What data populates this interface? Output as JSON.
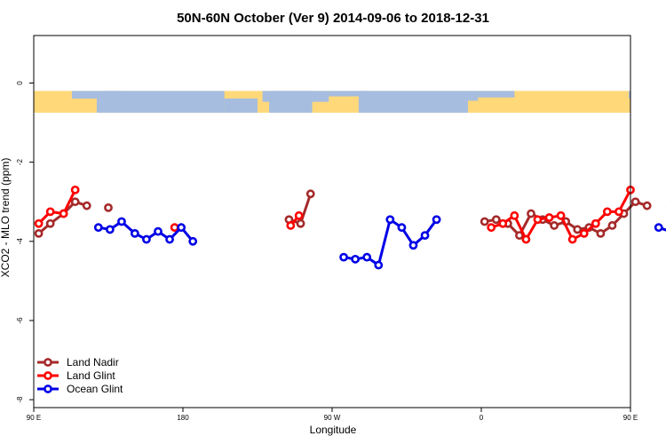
{
  "chart_data": {
    "type": "line",
    "title": "50N-60N October (Ver 9)   2014-09-06 to 2018-12-31",
    "xlabel": "Longitude",
    "ylabel": "XCO2 - MLO trend (ppm)",
    "xlim": [
      90,
      450
    ],
    "ylim": [
      -8.2,
      1.2
    ],
    "x_ticks": [
      {
        "value": 90,
        "label": "90 E"
      },
      {
        "value": 180,
        "label": "180"
      },
      {
        "value": 270,
        "label": "90 W"
      },
      {
        "value": 360,
        "label": "0"
      },
      {
        "value": 450,
        "label": "90 E"
      },
      {
        "value": 540,
        "label": "180"
      }
    ],
    "y_ticks": [
      {
        "value": 0,
        "label": "0"
      },
      {
        "value": -2,
        "label": "-2"
      },
      {
        "value": -4,
        "label": "-4"
      },
      {
        "value": -6,
        "label": "-6"
      },
      {
        "value": -8,
        "label": "-8"
      }
    ],
    "map_strip": {
      "y_top": -0.2,
      "y_bottom": -0.75,
      "land_color": "#ffd87a",
      "ocean_color": "#a6bddf"
    },
    "legend": {
      "placement": "bottom-left"
    },
    "series": [
      {
        "name": "Land Nadir",
        "color": "#a52a2a",
        "segments": [
          [
            [
              93,
              -3.8
            ],
            [
              100,
              -3.55
            ],
            [
              108,
              -3.3
            ],
            [
              115,
              -3.0
            ],
            [
              122,
              -3.1
            ]
          ],
          [
            [
              135,
              -3.15
            ]
          ],
          [
            [
              244,
              -3.45
            ],
            [
              251,
              -3.55
            ],
            [
              257,
              -2.8
            ]
          ],
          [
            [
              362,
              -3.5
            ],
            [
              369,
              -3.45
            ],
            [
              376,
              -3.55
            ],
            [
              383,
              -3.85
            ],
            [
              390,
              -3.3
            ],
            [
              397,
              -3.45
            ],
            [
              404,
              -3.6
            ],
            [
              411,
              -3.5
            ],
            [
              418,
              -3.7
            ],
            [
              425,
              -3.65
            ],
            [
              432,
              -3.8
            ],
            [
              439,
              -3.6
            ],
            [
              446,
              -3.3
            ],
            [
              453,
              -3.0
            ],
            [
              460,
              -3.1
            ]
          ],
          [
            [
              474,
              -3.15
            ]
          ]
        ]
      },
      {
        "name": "Land Glint",
        "color": "#ff0000",
        "segments": [
          [
            [
              93,
              -3.55
            ],
            [
              100,
              -3.25
            ],
            [
              108,
              -3.3
            ],
            [
              115,
              -2.7
            ]
          ],
          [
            [
              175,
              -3.65
            ]
          ],
          [
            [
              245,
              -3.6
            ],
            [
              250,
              -3.35
            ]
          ],
          [
            [
              366,
              -3.65
            ],
            [
              373,
              -3.55
            ],
            [
              380,
              -3.35
            ],
            [
              387,
              -3.95
            ],
            [
              394,
              -3.45
            ],
            [
              401,
              -3.4
            ],
            [
              408,
              -3.35
            ],
            [
              415,
              -3.95
            ],
            [
              422,
              -3.8
            ],
            [
              429,
              -3.55
            ],
            [
              436,
              -3.25
            ],
            [
              443,
              -3.25
            ],
            [
              450,
              -2.7
            ]
          ]
        ]
      },
      {
        "name": "Ocean Glint",
        "color": "#0000e6",
        "segments": [
          [
            [
              129,
              -3.65
            ],
            [
              136,
              -3.7
            ],
            [
              143,
              -3.5
            ],
            [
              151,
              -3.8
            ],
            [
              158,
              -3.95
            ],
            [
              165,
              -3.75
            ],
            [
              172,
              -3.95
            ],
            [
              179,
              -3.65
            ],
            [
              186,
              -4.0
            ]
          ],
          [
            [
              277,
              -4.4
            ],
            [
              284,
              -4.45
            ],
            [
              291,
              -4.4
            ],
            [
              298,
              -4.6
            ],
            [
              305,
              -3.45
            ],
            [
              312,
              -3.65
            ],
            [
              319,
              -4.1
            ],
            [
              326,
              -3.85
            ],
            [
              333,
              -3.45
            ]
          ],
          [
            [
              467,
              -3.65
            ],
            [
              474,
              -3.75
            ],
            [
              481,
              -3.5
            ],
            [
              488,
              -3.8
            ]
          ]
        ]
      }
    ]
  }
}
